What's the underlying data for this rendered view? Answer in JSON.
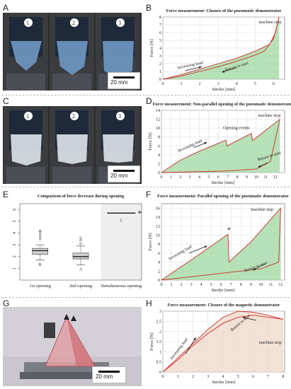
{
  "panels": {
    "A": {
      "letter": "A",
      "frames": [
        "1",
        "2",
        "3"
      ],
      "scale": "20 mm"
    },
    "C": {
      "letter": "C",
      "frames": [
        "1",
        "2",
        "3"
      ],
      "scale": "20 mm"
    },
    "G": {
      "letter": "G",
      "scale": "20 mm"
    },
    "B": {
      "letter": "B"
    },
    "D": {
      "letter": "D"
    },
    "E": {
      "letter": "E"
    },
    "F": {
      "letter": "F"
    },
    "H": {
      "letter": "H"
    }
  },
  "colors": {
    "curve": "#c9302c",
    "fill": "#9fd79f",
    "fill_h": "#f0d7c8",
    "photo_blue": "#6a8fb8"
  },
  "chart_data": [
    {
      "id": "B",
      "type": "area",
      "title": "Force measurement: Closure of the pneumatic demonstrator",
      "xlabel": "Stroke [mm]",
      "ylabel": "Force [N]",
      "xlim": [
        0,
        6.6
      ],
      "ylim": [
        0,
        8
      ],
      "xticks": [
        0,
        1,
        2,
        3,
        4,
        5,
        6
      ],
      "yticks": [
        0,
        1,
        2,
        3,
        4,
        5,
        6,
        7,
        8
      ],
      "annotations": [
        "Increasing load",
        "Return to start",
        "machine stop"
      ],
      "series": [
        {
          "role": "loading",
          "x": [
            0,
            1,
            2,
            3,
            4,
            5,
            5.8,
            6.1,
            6.3
          ],
          "y": [
            0,
            0.6,
            1.3,
            2.0,
            2.7,
            3.6,
            4.5,
            6.0,
            8.0
          ]
        },
        {
          "role": "unloading",
          "x": [
            6.3,
            6.0,
            5.5,
            5.0,
            4.0,
            3.0,
            2.0,
            1.0,
            0
          ],
          "y": [
            8.0,
            5.2,
            3.6,
            3.1,
            2.3,
            1.6,
            1.0,
            0.4,
            0
          ]
        }
      ],
      "grid": true
    },
    {
      "id": "D",
      "type": "area",
      "title": "Force measurement: Non-parallel opening of the pneumatic demonstrator",
      "xlabel": "Stroke [mm]",
      "ylabel": "Force [N]",
      "xlim": [
        0,
        13
      ],
      "ylim": [
        0,
        14
      ],
      "xticks": [
        0,
        1,
        2,
        3,
        4,
        5,
        6,
        7,
        8,
        9,
        10,
        11,
        12
      ],
      "yticks": [
        0,
        2,
        4,
        6,
        8,
        10,
        12,
        14
      ],
      "annotations": [
        "Increasing load",
        "Opening events",
        "Return to start",
        "machine stop"
      ],
      "series": [
        {
          "role": "loading",
          "x": [
            0,
            2,
            4,
            6.8,
            6.9,
            9.5,
            9.6,
            12.5
          ],
          "y": [
            0,
            2.8,
            4.8,
            7.3,
            6.0,
            8.8,
            7.2,
            12.0
          ]
        },
        {
          "role": "unloading",
          "x": [
            12.5,
            11.5,
            10,
            8,
            6,
            4,
            2,
            0
          ],
          "y": [
            12.0,
            2.5,
            0.8,
            0.5,
            0.3,
            0.2,
            0.1,
            0
          ]
        }
      ],
      "grid": true
    },
    {
      "id": "E",
      "type": "box",
      "title": "Comparison of force decrease during opening",
      "categories": [
        "1st opening",
        "2nd opening",
        "Simultaneous opening"
      ],
      "ylim": [
        0,
        6.5
      ],
      "yticks": [
        1,
        2,
        3,
        4,
        5,
        6
      ],
      "boxes": [
        {
          "min": 1.7,
          "q1": 2.2,
          "median": 2.5,
          "q3": 2.7,
          "max": 3.0,
          "outliers": [
            3.5,
            3.7,
            3.9,
            4.1,
            4.2
          ]
        },
        {
          "min": 1.3,
          "q1": 1.8,
          "median": 2.0,
          "q3": 2.3,
          "max": 2.9,
          "outliers": [
            3.1,
            3.4,
            3.6
          ]
        },
        {
          "min": 5.7,
          "q1": 5.7,
          "median": 5.7,
          "q3": 5.7,
          "max": 5.7,
          "outliers": []
        }
      ],
      "group_letters": [
        "B",
        "A",
        "C"
      ],
      "significance": "*",
      "grid": true
    },
    {
      "id": "F",
      "type": "area",
      "title": "Force measurement: Parallel opening of the pneumatic demonstrator",
      "xlabel": "Stroke [mm]",
      "ylabel": "Force [N]",
      "xlim": [
        0,
        12.4
      ],
      "ylim": [
        0,
        17
      ],
      "xticks": [
        0,
        1,
        2,
        3,
        4,
        5,
        6,
        7,
        8,
        9,
        10,
        11,
        12
      ],
      "yticks": [
        0,
        2,
        4,
        6,
        8,
        10,
        12,
        14,
        16
      ],
      "annotations": [
        "Increasing load",
        "Return to start",
        "machine stop",
        "*"
      ],
      "series": [
        {
          "role": "loading",
          "x": [
            0,
            2,
            4,
            6.7,
            6.8,
            9,
            12
          ],
          "y": [
            0,
            3.0,
            6.0,
            10.2,
            4.0,
            8.5,
            16.0
          ]
        },
        {
          "role": "unloading",
          "x": [
            12,
            11.8,
            10,
            8,
            6,
            4,
            2,
            0
          ],
          "y": [
            16.0,
            4.0,
            2.5,
            2.0,
            1.5,
            1.0,
            0.5,
            0
          ]
        }
      ],
      "grid": true
    },
    {
      "id": "H",
      "type": "area",
      "title": "Force measurement: Closure of the magnetic demonstrator",
      "xlabel": "Stroke [mm]",
      "ylabel": "Force [N]",
      "xlim": [
        0,
        8.1
      ],
      "ylim": [
        0,
        3
      ],
      "xticks": [
        0,
        1,
        2,
        3,
        4,
        5,
        6,
        7,
        8
      ],
      "yticks": [
        0,
        0.5,
        1,
        1.5,
        2,
        2.5,
        3
      ],
      "annotations": [
        "Increasing load",
        "Return to start",
        "machine stop"
      ],
      "series": [
        {
          "role": "loading",
          "x": [
            0,
            1,
            2,
            3,
            4,
            5,
            6,
            7,
            8
          ],
          "y": [
            0,
            0.7,
            1.4,
            2.1,
            2.7,
            3.0,
            2.95,
            2.8,
            2.6
          ]
        },
        {
          "role": "unloading",
          "x": [
            8,
            7,
            6,
            5,
            4,
            3,
            2,
            1,
            0
          ],
          "y": [
            2.6,
            2.7,
            2.8,
            2.7,
            2.4,
            1.9,
            1.3,
            0.6,
            0
          ]
        }
      ],
      "grid": true
    }
  ]
}
